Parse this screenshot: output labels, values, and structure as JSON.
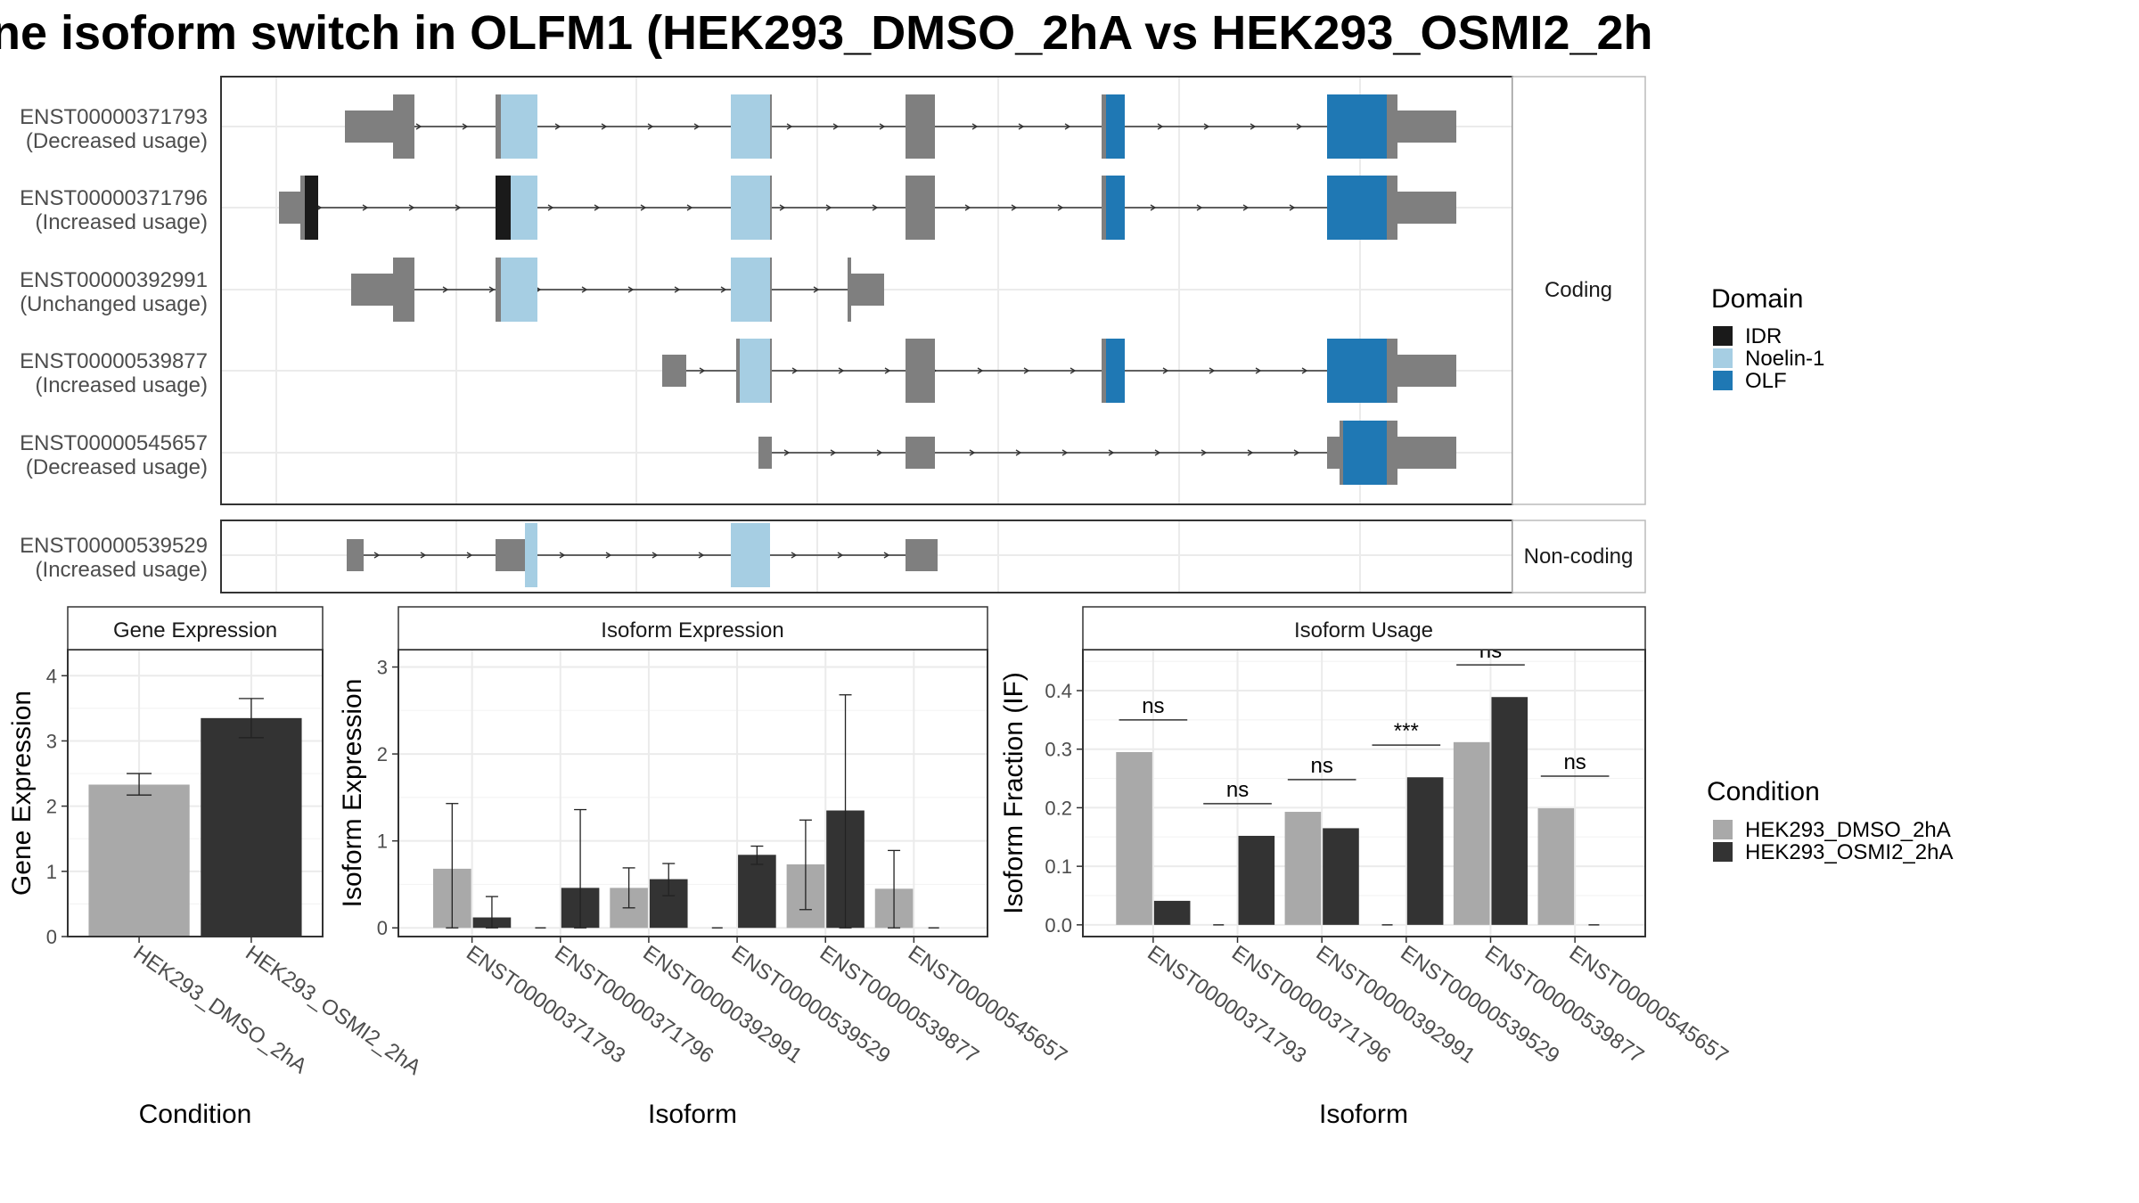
{
  "title": "ne isoform switch in OLFM1 (HEK293_DMSO_2hA vs HEK293_OSMI2_2h",
  "colors": {
    "exon": "#7f7f7f",
    "IDR": "#1a1a1a",
    "Noelin-1": "#a6cee3",
    "OLF": "#1f78b4",
    "dmso": "#a9a9a9",
    "osmi": "#333333"
  },
  "transcript_panel": {
    "facets": [
      "Coding",
      "Non-coding"
    ],
    "rows": [
      {
        "id": "ENST00000371793",
        "usage": "(Decreased usage)",
        "group": "Coding"
      },
      {
        "id": "ENST00000371796",
        "usage": "(Increased usage)",
        "group": "Coding"
      },
      {
        "id": "ENST00000392991",
        "usage": "(Unchanged usage)",
        "group": "Coding"
      },
      {
        "id": "ENST00000539877",
        "usage": "(Increased usage)",
        "group": "Coding"
      },
      {
        "id": "ENST00000545657",
        "usage": "(Decreased usage)",
        "group": "Coding"
      },
      {
        "id": "ENST00000539529",
        "usage": "(Increased usage)",
        "group": "Non-coding"
      }
    ],
    "legend": {
      "title": "Domain",
      "items": [
        "IDR",
        "Noelin-1",
        "OLF"
      ]
    }
  },
  "chart_data": [
    {
      "type": "bar",
      "title": "Gene Expression",
      "xlabel": "Condition",
      "ylabel": "Gene Expression",
      "categories": [
        "HEK293_DMSO_2hA",
        "HEK293_OSMI2_2hA"
      ],
      "values": [
        2.33,
        3.35
      ],
      "error_low": [
        2.17,
        3.05
      ],
      "error_high": [
        2.5,
        3.65
      ],
      "ylim": [
        0,
        4.4
      ],
      "yticks": [
        0,
        1,
        2,
        3,
        4
      ]
    },
    {
      "type": "bar",
      "title": "Isoform Expression",
      "xlabel": "Isoform",
      "ylabel": "Isoform Expression",
      "categories": [
        "ENST00000371793",
        "ENST00000371796",
        "ENST00000392991",
        "ENST00000539529",
        "ENST00000539877",
        "ENST00000545657"
      ],
      "series": [
        {
          "name": "HEK293_DMSO_2hA",
          "values": [
            0.68,
            0,
            0.46,
            0,
            0.73,
            0.45
          ],
          "error_low": [
            0,
            0,
            0.23,
            0,
            0.21,
            0
          ],
          "error_high": [
            1.43,
            0,
            0.69,
            0,
            1.24,
            0.89
          ]
        },
        {
          "name": "HEK293_OSMI2_2hA",
          "values": [
            0.12,
            0.46,
            0.56,
            0.84,
            1.35,
            0
          ],
          "error_low": [
            0,
            0,
            0.37,
            0.73,
            0,
            0
          ],
          "error_high": [
            0.36,
            1.36,
            0.74,
            0.94,
            2.68,
            0
          ]
        }
      ],
      "ylim": [
        -0.1,
        3.2
      ],
      "yticks": [
        0,
        1,
        2,
        3
      ]
    },
    {
      "type": "bar",
      "title": "Isoform Usage",
      "xlabel": "Isoform",
      "ylabel": "Isoform Fraction (IF)",
      "categories": [
        "ENST00000371793",
        "ENST00000371796",
        "ENST00000392991",
        "ENST00000539529",
        "ENST00000539877",
        "ENST00000545657"
      ],
      "series": [
        {
          "name": "HEK293_DMSO_2hA",
          "values": [
            0.295,
            0,
            0.193,
            0,
            0.312,
            0.199
          ]
        },
        {
          "name": "HEK293_OSMI2_2hA",
          "values": [
            0.041,
            0.152,
            0.165,
            0.252,
            0.389,
            0
          ]
        }
      ],
      "significance": [
        "ns",
        "ns",
        "ns",
        "***",
        "ns",
        "ns"
      ],
      "ylim": [
        -0.02,
        0.47
      ],
      "yticks": [
        0.0,
        0.1,
        0.2,
        0.3,
        0.4
      ],
      "ytick_labels": [
        "0.0",
        "0.1",
        "0.2",
        "0.3",
        "0.4"
      ]
    }
  ],
  "condition_legend": {
    "title": "Condition",
    "items": [
      "HEK293_DMSO_2hA",
      "HEK293_OSMI2_2hA"
    ]
  }
}
